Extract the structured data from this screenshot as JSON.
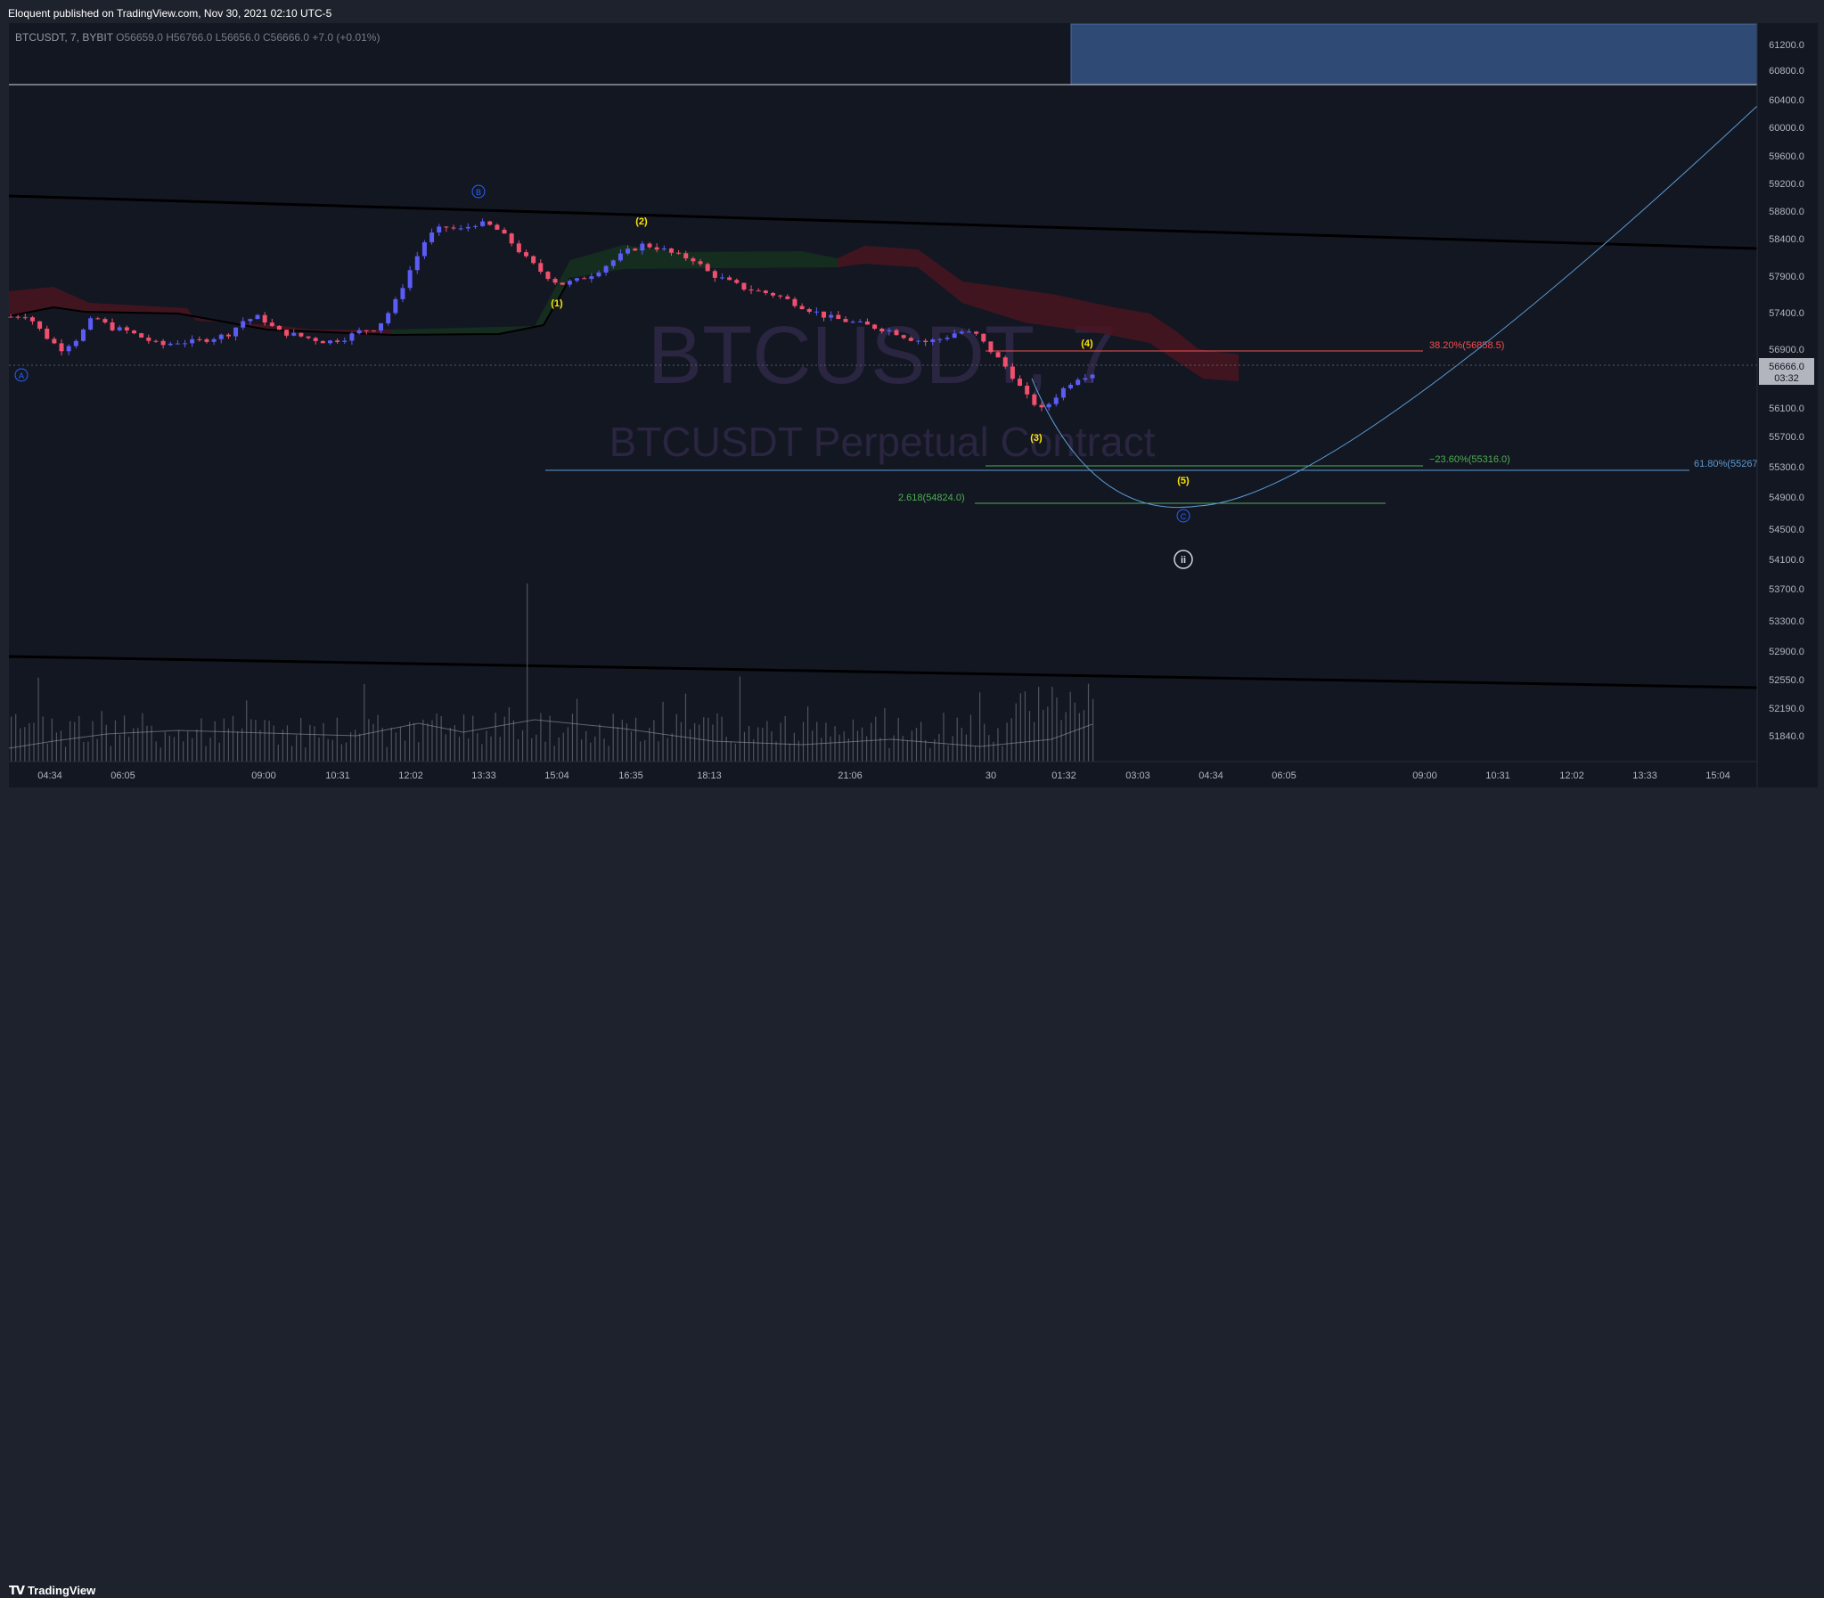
{
  "header": {
    "publisher_line": "Eloquent published on TradingView.com, Nov 30, 2021 02:10 UTC-5"
  },
  "legend": {
    "symbol": "BTCUSDT, 7, BYBIT",
    "open": "O56659.0",
    "high": "H56766.0",
    "low": "L56656.0",
    "close": "C56666.0",
    "change": "+7.0 (+0.01%)"
  },
  "watermark": {
    "symbol": "BTCUSDT, 7",
    "description": "BTCUSDT Perpetual Contract"
  },
  "footer": {
    "brand": "TradingView"
  },
  "colors": {
    "background": "#131722",
    "frame": "#1e222d",
    "up_candle": "#5b5bf5",
    "down_candle": "#f0506e",
    "trendline": "#000000",
    "fib_red": "#f05050",
    "fib_green": "#4caf50",
    "fib_blue": "#5b9bd5",
    "wave_label": "#ffe600",
    "corrective_label": "#2962ff",
    "cloud_bear": "#4a1520",
    "cloud_bull": "#15301f"
  },
  "chart_data": {
    "type": "candlestick",
    "y_axis": {
      "ticks": [
        "61200.0",
        "60800.0",
        "60400.0",
        "60000.0",
        "59600.0",
        "59200.0",
        "58800.0",
        "58400.0",
        "57900.0",
        "57400.0",
        "56900.0",
        "56100.0",
        "55700.0",
        "55300.0",
        "54900.0",
        "54500.0",
        "54100.0",
        "53700.0",
        "53300.0",
        "52900.0",
        "52550.0",
        "52190.0",
        "51840.0"
      ],
      "last_price": "56666.0",
      "countdown": "03:32"
    },
    "x_axis": {
      "ticks": [
        "04:34",
        "06:05",
        "09:00",
        "10:31",
        "12:02",
        "13:33",
        "15:04",
        "16:35",
        "18:13",
        "21:06",
        "30",
        "01:32",
        "03:03",
        "04:34",
        "06:05",
        "09:00",
        "10:31",
        "12:02",
        "13:33",
        "15:04"
      ]
    },
    "price_path": [
      57450,
      57480,
      57200,
      57000,
      57150,
      57450,
      57300,
      57250,
      57150,
      57050,
      57100,
      57100,
      57150,
      57200,
      57400,
      57450,
      57250,
      57200,
      57150,
      57100,
      57150,
      57250,
      57300,
      57600,
      58100,
      58550,
      58700,
      58650,
      58750,
      58700,
      58500,
      58250,
      58050,
      57900,
      57950,
      58050,
      58200,
      58350,
      58450,
      58400,
      58300,
      58250,
      58050,
      57950,
      57850,
      57800,
      57750,
      57650,
      57550,
      57450,
      57400,
      57350,
      57300,
      57250,
      57150,
      57100,
      57150,
      57250,
      57200,
      56950,
      56700,
      56350,
      56150,
      56400,
      56600,
      56666
    ],
    "wave_labels": [
      "(1)",
      "(2)",
      "(3)",
      "(4)",
      "(5)"
    ],
    "corrective_labels": [
      "A",
      "B",
      "C"
    ],
    "degree_label": "ii",
    "fib_levels": [
      {
        "label": "38.20%(56858.5)"
      },
      {
        "label": "−23.60%(55316.0)"
      },
      {
        "label": "61.80%(55267"
      },
      {
        "label": "2.618(54824.0)"
      }
    ]
  }
}
